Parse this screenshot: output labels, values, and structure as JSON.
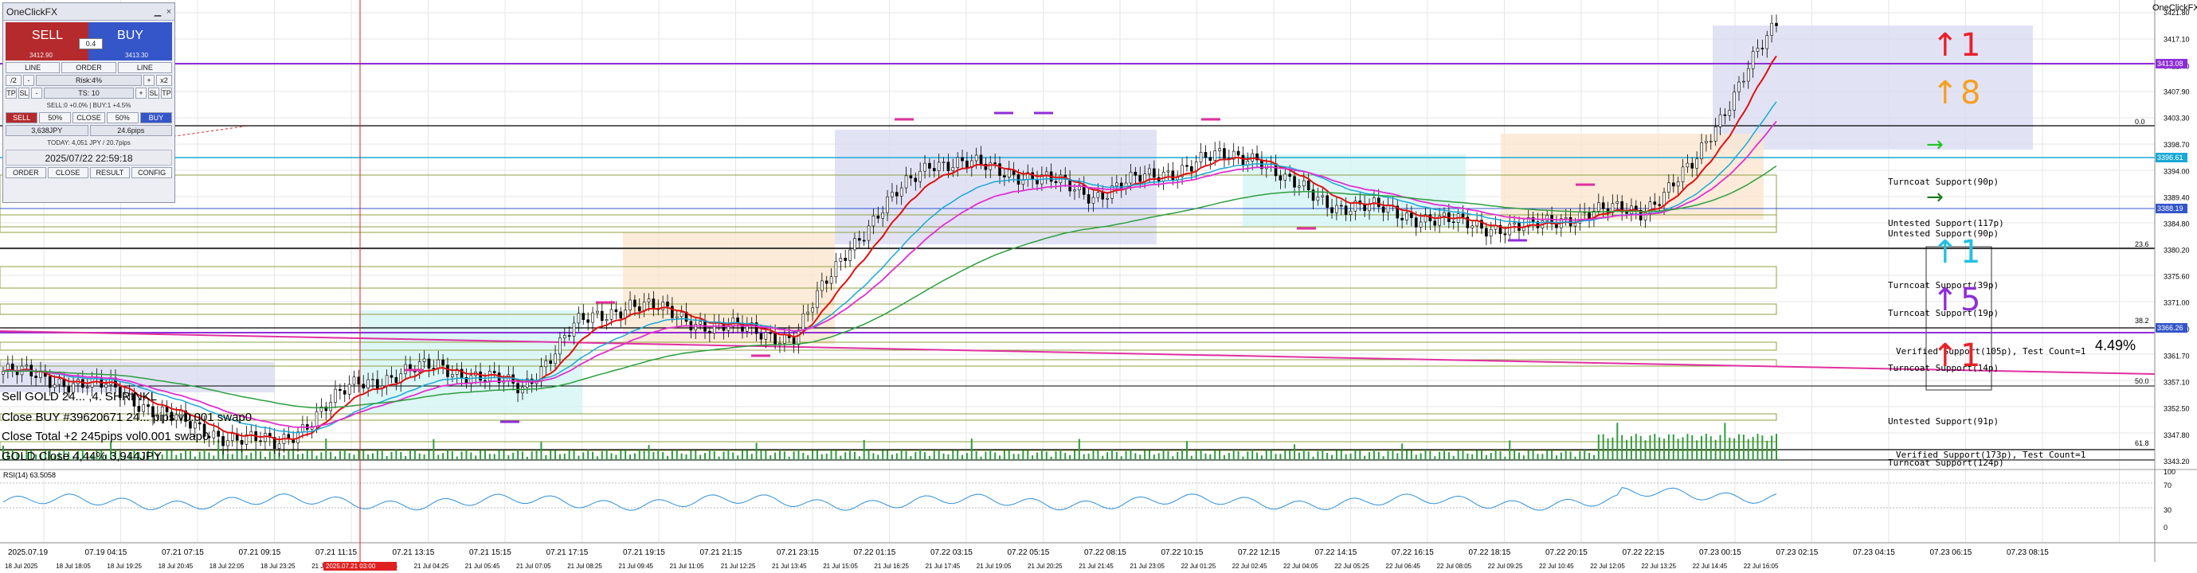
{
  "panel": {
    "title": "OneClickFX",
    "sell_label": "SELL",
    "buy_label": "BUY",
    "lot": "0.4",
    "sell_price": "3412.90",
    "buy_price": "3413.30",
    "header_row": [
      "LINE",
      "ORDER",
      "LINE"
    ],
    "row2": {
      "left_a": "/2",
      "left_b": "-",
      "risk": "Risk:4%",
      "right_a": "+",
      "right_b": "x2"
    },
    "row3": {
      "tp_left": "TP",
      "sl_left": "SL",
      "minus": "-",
      "ts": "TS: 10",
      "plus": "+",
      "sl_right": "SL",
      "tp_right": "TP"
    },
    "positions": "SELL:0 +0.0%  |  BUY:1 +4.5%",
    "close_row": [
      "SELL",
      "50%",
      "CLOSE",
      "50%",
      "BUY"
    ],
    "jpy": "3,638JPY",
    "pips": "24.6pips",
    "today": "TODAY: 4,051 JPY / 20.7pips",
    "datetime": "2025/07/22 22:59:18",
    "bottom_tabs": [
      "ORDER",
      "CLOSE",
      "RESULT",
      "CONFIG"
    ]
  },
  "top_right_label": "OneClickFX",
  "overlay_text": {
    "line1": "Sell GOLD 24... ,4.  SHRINKL",
    "line2": "Close BUY #39620671 24... pips v0.001 swap0",
    "line3": "Close Total +2 245pips vol0.001 swap0",
    "line4": "GOLD Close  4,44% 3,944JPY"
  },
  "percent_label": "4.49%",
  "arrows": [
    {
      "symbol": "↑",
      "count": "1",
      "color": "#e8202a"
    },
    {
      "symbol": "↑",
      "count": "8",
      "color": "#f5a021"
    },
    {
      "symbol": "→",
      "count": "",
      "color": "#22c422"
    },
    {
      "symbol": "→",
      "count": "",
      "color": "#1d7a1d"
    },
    {
      "symbol": "↑",
      "count": "1",
      "color": "#22c0e0"
    },
    {
      "symbol": "↑",
      "count": "5",
      "color": "#8e2ed8"
    },
    {
      "symbol": "↑",
      "count": "1",
      "color": "#e8202a"
    }
  ],
  "zone_labels": [
    "Turncoat Support(90p)",
    "Untested Support(117p)",
    "Untested Support(90p)",
    "Turncoat Support(39p)",
    "Turncoat Support(19p)",
    "Verified Support(105p), Test Count=1",
    "Turncoat Support(14p)",
    "Untested Support(91p)",
    "Verified Support(173p), Test Count=1",
    "Turncoat Support(124p)"
  ],
  "price_scale": [
    "3421.80",
    "3417.10",
    "3412.40",
    "3407.90",
    "3403.30",
    "3398.70",
    "3394.00",
    "3389.40",
    "3384.80",
    "3380.20",
    "3375.60",
    "3371.00",
    "3366.30",
    "3361.70",
    "3357.10",
    "3352.50",
    "3347.80",
    "3343.20"
  ],
  "price_tags": [
    {
      "text": "3413.08",
      "color": "#8e2ed8"
    },
    {
      "text": "3396.61",
      "color": "#1aa9d6"
    },
    {
      "text": "3388.19",
      "color": "#3456c9"
    },
    {
      "text": "3366.26",
      "color": "#3456c9"
    }
  ],
  "fibo_labels": [
    "0.0",
    "23.6",
    "38.2",
    "50.0",
    "61.8"
  ],
  "rsi": {
    "label": "RSI(14) 63.5058",
    "scale": [
      "100",
      "70",
      "30",
      "0"
    ]
  },
  "time_labels": [
    "2025.07.19",
    "07.19 04:15",
    "07.21 07:15",
    "07.21 09:15",
    "07.21 11:15",
    "07.21 13:15",
    "07.21 15:15",
    "07.21 17:15",
    "07.21 19:15",
    "07.21 21:15",
    "07.21 23:15",
    "07.22 01:15",
    "07.22 03:15",
    "07.22 05:15",
    "07.22 08:15",
    "07.22 10:15",
    "07.22 12:15",
    "07.22 14:15",
    "07.22 16:15",
    "07.22 18:15",
    "07.22 20:15",
    "07.22 22:15",
    "07.23 00:15",
    "07.23 02:15",
    "07.23 04:15",
    "07.23 06:15",
    "07.23 08:15"
  ],
  "date_labels": [
    "18 Jul 2025",
    "18 Jul 18:05",
    "18 Jul 19:25",
    "18 Jul 20:45",
    "18 Jul 22:05",
    "18 Jul 23:25",
    "21 Jul 00:45",
    "21 Jul 02:05",
    "21 Jul 04:25",
    "21 Jul 05:45",
    "21 Jul 07:05",
    "21 Jul 08:25",
    "21 Jul 09:45",
    "21 Jul 11:05",
    "21 Jul 12:25",
    "21 Jul 13:45",
    "21 Jul 15:05",
    "21 Jul 16:25",
    "21 Jul 17:45",
    "21 Jul 19:05",
    "21 Jul 20:25",
    "21 Jul 21:45",
    "21 Jul 23:05",
    "22 Jul 01:25",
    "22 Jul 02:45",
    "22 Jul 04:05",
    "22 Jul 05:25",
    "22 Jul 06:45",
    "22 Jul 08:05",
    "22 Jul 09:25",
    "22 Jul 10:45",
    "22 Jul 12:05",
    "22 Jul 13:25",
    "22 Jul 14:45",
    "22 Jul 16:05"
  ],
  "cursor_tag": "2025.07.21 03:00",
  "colors": {
    "bull": "#1a7a1a",
    "bear": "#000000",
    "ma_red": "#e01010",
    "ma_blue": "#1aa9d6",
    "ma_magenta": "#e030d0",
    "ma_green": "#2e9e3e",
    "zone_blue": "#d9dcf3",
    "zone_orange": "#fbe6cf",
    "zone_cyan": "#d5f4f4"
  }
}
